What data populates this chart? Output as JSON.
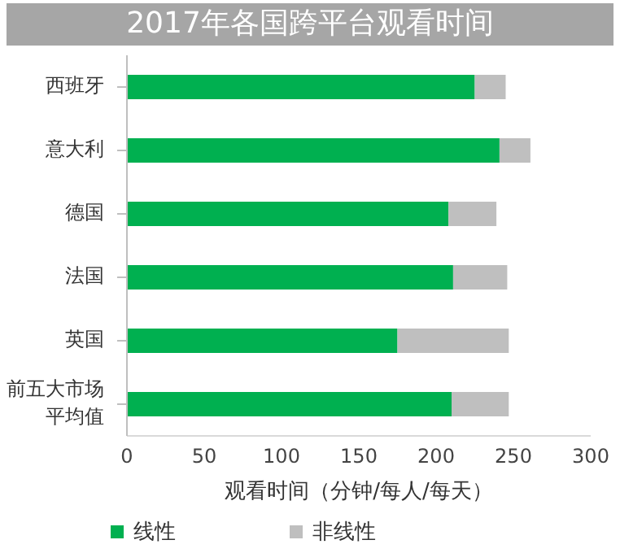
{
  "chart_data": {
    "type": "bar",
    "orientation": "horizontal",
    "stacked": true,
    "title": "2017年各国跨平台观看时间",
    "xlabel": "观看时间（分钟/每人/每天）",
    "categories": [
      "西班牙",
      "意大利",
      "德国",
      "法国",
      "英国",
      "前五大市场平均值"
    ],
    "series": [
      {
        "name": "线性",
        "color": "#00b050",
        "values": [
          225,
          241,
          208,
          211,
          175,
          210
        ]
      },
      {
        "name": "非线性",
        "color": "#bfbfbf",
        "values": [
          20,
          20,
          31,
          35,
          72,
          37
        ]
      }
    ],
    "xlim": [
      0,
      300
    ],
    "xticks": [
      0,
      50,
      100,
      150,
      200,
      250,
      300
    ],
    "grid": false,
    "legend": "bottom"
  }
}
